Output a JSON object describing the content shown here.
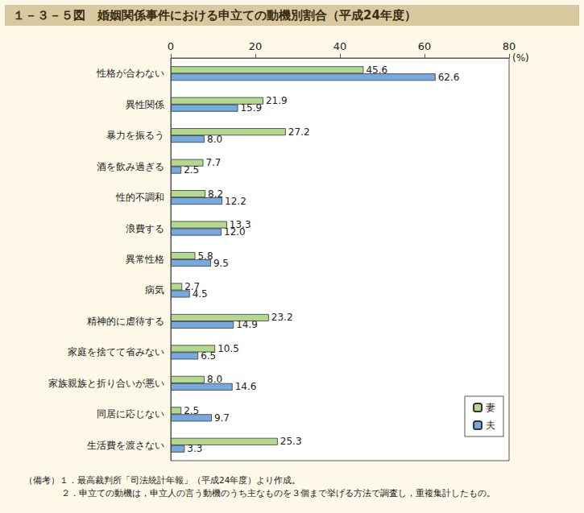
{
  "chart_data": {
    "type": "bar",
    "title": "１－３－５図　婚姻関係事件における申立ての動機別割合（平成24年度）",
    "xlabel": "(%)",
    "annotations": [
      "（備考）１．最高裁判所「司法統計年報」（平成24年度）より作成。",
      "２．申立ての動機は，申立人の言う動機のうち主なものを３個まで挙げる方法で調査し，重複集計したもの。"
    ],
    "orientation": "horizontal",
    "categories": [
      "性格が合わない",
      "異性関係",
      "暴力を振るう",
      "酒を飲み過ぎる",
      "性的不調和",
      "浪費する",
      "異常性格",
      "病気",
      "精神的に虐待する",
      "家庭を捨てて省みない",
      "家族親族と折り合いが悪い",
      "同居に応じない",
      "生活費を渡さない"
    ],
    "series": [
      {
        "name": "妻",
        "color": "#b3d88e",
        "values": [
          45.6,
          21.9,
          27.2,
          7.7,
          8.2,
          13.3,
          5.8,
          2.7,
          23.2,
          10.5,
          8.0,
          2.5,
          25.3
        ],
        "value_labels": [
          "45.6",
          "21.9",
          "27.2",
          "7.7",
          "8.2",
          "13.3",
          "5.8",
          "2.7",
          "23.2",
          "10.5",
          "8.0",
          "2.5",
          "25.3"
        ]
      },
      {
        "name": "夫",
        "color": "#76a9de",
        "values": [
          62.6,
          15.9,
          8.0,
          2.5,
          12.2,
          12.0,
          9.5,
          4.5,
          14.9,
          6.5,
          14.6,
          9.7,
          3.3
        ],
        "value_labels": [
          "62.6",
          "15.9",
          "8.0",
          "2.5",
          "12.2",
          "12.0",
          "9.5",
          "4.5",
          "14.9",
          "6.5",
          "14.6",
          "9.7",
          "3.3"
        ]
      }
    ],
    "xlim": [
      0,
      80
    ],
    "xticks": [
      0,
      20,
      40,
      60,
      80
    ],
    "grid": false,
    "legend": "bottom-right",
    "data_labels": true
  }
}
